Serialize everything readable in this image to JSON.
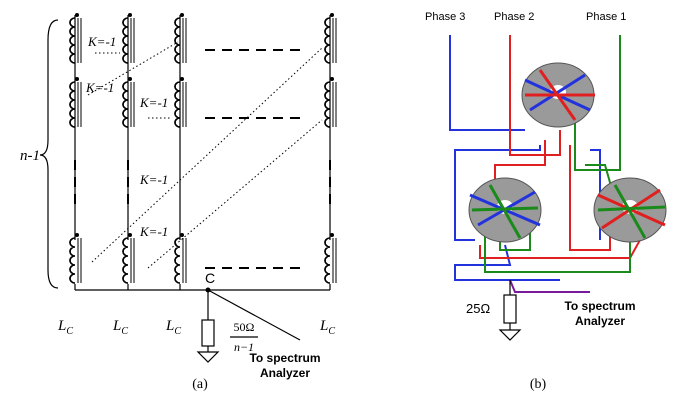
{
  "panel_a": {
    "brace_label": "n-1",
    "coupling_labels": [
      "K=-1",
      "K=-1",
      "K=-1",
      "K=-1",
      "K=-1"
    ],
    "inductor_labels": [
      {
        "symbol": "L",
        "subscript": "C"
      },
      {
        "symbol": "L",
        "subscript": "C"
      },
      {
        "symbol": "L",
        "subscript": "C"
      },
      {
        "symbol": "L",
        "subscript": "C"
      }
    ],
    "node_label": "C",
    "resistor": {
      "numerator": "50Ω",
      "denominator": "n−1"
    },
    "output_label": [
      "To spectrum",
      "Analyzer"
    ],
    "caption": "(a)"
  },
  "panel_b": {
    "phase_labels": [
      "Phase 3",
      "Phase 2",
      "Phase 1"
    ],
    "resistor_label": "25Ω",
    "output_label": [
      "To spectrum",
      "Analyzer"
    ],
    "caption": "(b)"
  }
}
